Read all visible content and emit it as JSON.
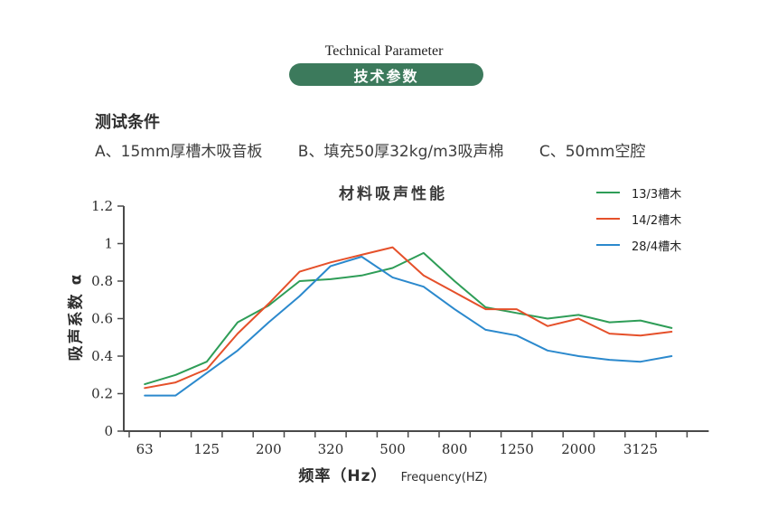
{
  "header": {
    "title_en": "Technical Parameter",
    "title_zh": "技术参数"
  },
  "test_conditions": {
    "heading": "测试条件",
    "items": [
      "A、15mm厚槽木吸音板",
      "B、填充50厚32kg/m3吸声棉",
      "C、50mm空腔"
    ]
  },
  "chart_data": {
    "type": "line",
    "title": "材料吸声性能",
    "ylabel": "吸声系数 α",
    "xlabel_zh": "频率（Hz）",
    "xlabel_en": "Frequency(HZ)",
    "grid": false,
    "legend_position": "top-right",
    "ylim": [
      0,
      1.2
    ],
    "y_ticks": [
      0,
      0.2,
      0.4,
      0.6,
      0.8,
      1,
      1.2
    ],
    "y_tick_labels": [
      "0",
      "0.2",
      "0.4",
      "0.6",
      "0.8",
      "1",
      "1.2"
    ],
    "x": [
      63,
      90,
      125,
      160,
      200,
      250,
      320,
      400,
      500,
      630,
      800,
      1000,
      1250,
      1600,
      2000,
      2500,
      3125,
      4000
    ],
    "x_tick_labels": [
      "63",
      "125",
      "200",
      "320",
      "500",
      "800",
      "1250",
      "2000",
      "3125"
    ],
    "x_labeled_indices": [
      0,
      2,
      4,
      6,
      8,
      10,
      12,
      14,
      16
    ],
    "series": [
      {
        "name": "13/3槽木",
        "color": "#2e9d57",
        "values": [
          0.25,
          0.3,
          0.37,
          0.58,
          0.67,
          0.8,
          0.81,
          0.83,
          0.87,
          0.95,
          0.8,
          0.66,
          0.63,
          0.6,
          0.62,
          0.58,
          0.59,
          0.55
        ]
      },
      {
        "name": "14/2槽木",
        "color": "#e5502a",
        "values": [
          0.23,
          0.26,
          0.33,
          0.52,
          0.68,
          0.85,
          0.9,
          0.94,
          0.98,
          0.83,
          0.74,
          0.65,
          0.65,
          0.56,
          0.6,
          0.52,
          0.51,
          0.53
        ]
      },
      {
        "name": "28/4槽木",
        "color": "#2b89cd",
        "values": [
          0.19,
          0.19,
          0.31,
          0.43,
          0.58,
          0.72,
          0.88,
          0.93,
          0.82,
          0.77,
          0.65,
          0.54,
          0.51,
          0.43,
          0.4,
          0.38,
          0.37,
          0.4
        ]
      }
    ],
    "colors": {
      "pill_green": "#3c7a5c",
      "axis": "#4a4a4a",
      "tick_text": "#2b2b2b"
    }
  }
}
